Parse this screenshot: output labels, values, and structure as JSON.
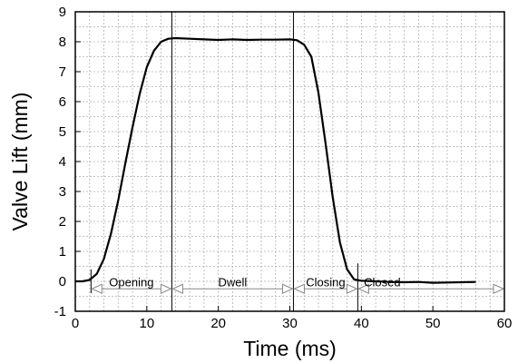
{
  "chart_data": {
    "type": "line",
    "title": "",
    "xlabel": "Time (ms)",
    "ylabel": "Valve Lift (mm)",
    "xlim": [
      0,
      60
    ],
    "ylim": [
      -1,
      9
    ],
    "x_ticks": [
      0,
      10,
      20,
      30,
      40,
      50,
      60
    ],
    "x_tick_labels": [
      "0",
      "10",
      "20",
      "30",
      "40",
      "50",
      "60"
    ],
    "y_ticks": [
      -1,
      0,
      1,
      2,
      3,
      4,
      5,
      6,
      7,
      8,
      9
    ],
    "y_tick_labels": [
      "-1",
      "0",
      "1",
      "2",
      "3",
      "4",
      "5",
      "6",
      "7",
      "8",
      "9"
    ],
    "x_minor_step": 2,
    "y_minor_step": 0.5,
    "grid": true,
    "series": [
      {
        "x": [
          0,
          1,
          2,
          3,
          4,
          5,
          6,
          7,
          8,
          9,
          10,
          11,
          12,
          13,
          14,
          16,
          18,
          20,
          22,
          24,
          26,
          28,
          30,
          31,
          32,
          33,
          34,
          35,
          36,
          37,
          38,
          39,
          40,
          42,
          44,
          46,
          48,
          50,
          52,
          54,
          56
        ],
        "y": [
          0,
          0,
          0.05,
          0.25,
          0.75,
          1.6,
          2.7,
          3.95,
          5.15,
          6.25,
          7.15,
          7.7,
          8.0,
          8.1,
          8.12,
          8.1,
          8.08,
          8.06,
          8.08,
          8.06,
          8.07,
          8.07,
          8.08,
          8.05,
          7.9,
          7.5,
          6.3,
          4.6,
          2.8,
          1.3,
          0.4,
          0.06,
          0.02,
          0.0,
          -0.02,
          -0.03,
          -0.02,
          -0.05,
          -0.04,
          -0.03,
          -0.02
        ],
        "color": "#000000"
      }
    ],
    "phase_markers": [
      {
        "x": 2.2,
        "y_from": -0.4,
        "y_to": 0.4
      },
      {
        "x": 13.5,
        "y_from": -1,
        "y_to": 9
      },
      {
        "x": 30.5,
        "y_from": -1,
        "y_to": 9
      },
      {
        "x": 39.5,
        "y_from": -1,
        "y_to": 0.6
      }
    ],
    "annotations": [
      {
        "label": "Opening",
        "x_start": 2.2,
        "x_end": 13.5,
        "y": -0.25
      },
      {
        "label": "Dwell",
        "x_start": 13.5,
        "x_end": 30.5,
        "y": -0.25
      },
      {
        "label": "Closing",
        "x_start": 30.5,
        "x_end": 39.5,
        "y": -0.25
      },
      {
        "label": "Closed",
        "x_start": 39.5,
        "x_end": 60,
        "y": -0.25
      }
    ]
  }
}
